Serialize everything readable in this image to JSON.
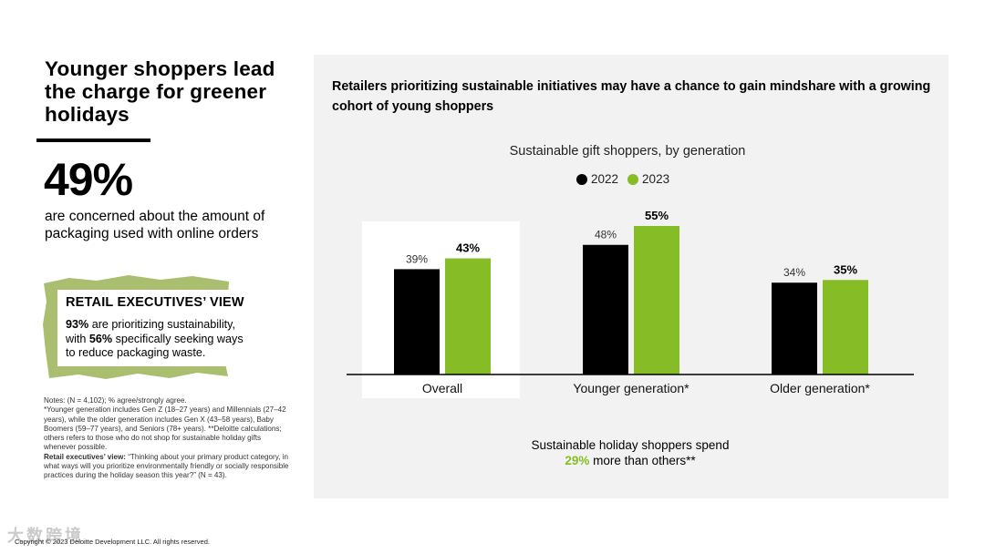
{
  "left": {
    "headline": "Younger shoppers lead the charge for greener holidays",
    "big_stat": "49%",
    "stat_desc": "are concerned about the amount of packaging used with online orders",
    "exec": {
      "title": "RETAIL EXECUTIVES’ VIEW",
      "stat1": "93%",
      "text1": " are prioritizing sustainability, with ",
      "stat2": "56%",
      "text2": " specifically seeking ways to reduce packaging waste."
    },
    "notes": {
      "line1": "Notes: (N = 4,102); % agree/strongly agree.",
      "line2": "*Younger generation includes Gen Z (18–27 years) and Millennials (27–42 years), while the older generation includes Gen X (43–58 years), Baby Boomers (59–77 years), and Seniors (78+ years). **Deloitte calculations; others refers to those who do not shop for sustainable holiday gifts whenever possible.",
      "exec_label": "Retail executives’ view:",
      "exec_text": " “Thinking about your primary product category, in what ways will you prioritize environmentally friendly or socially responsible practices during the holiday season this year?” (N = 43)."
    },
    "copyright": "Copyright © 2023 Deloitte Development LLC. All rights reserved.",
    "watermark": "大数跨境"
  },
  "panel": {
    "title": "Retailers prioritizing sustainable initiatives may have a chance to gain mindshare with a growing cohort of young shoppers",
    "footer_line1": "Sustainable holiday shoppers spend",
    "footer_stat": "29%",
    "footer_line2": " more than others**"
  },
  "colors": {
    "series_2022": "#000000",
    "series_2023": "#86bc25",
    "brush": "#a9be6e"
  },
  "chart_data": {
    "type": "bar",
    "title": "Sustainable gift shoppers, by generation",
    "categories": [
      "Overall",
      "Younger generation*",
      "Older generation*"
    ],
    "series": [
      {
        "name": "2022",
        "values": [
          39,
          48,
          34
        ],
        "labels": [
          "39%",
          "48%",
          "34%"
        ]
      },
      {
        "name": "2023",
        "values": [
          43,
          55,
          35
        ],
        "labels": [
          "43%",
          "55%",
          "35%"
        ]
      }
    ],
    "ylim": [
      0,
      60
    ],
    "xlabel": "",
    "ylabel": "",
    "highlight_category": "Overall",
    "legend": "top"
  }
}
